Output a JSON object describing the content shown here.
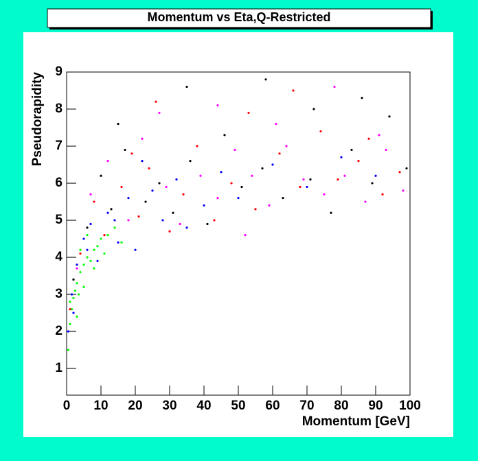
{
  "chart_data": {
    "type": "scatter",
    "title": "Momentum vs Eta,Q-Restricted",
    "x_label": "Momentum [GeV]",
    "y_label": "Pseudorapidity",
    "xlim": [
      0,
      100
    ],
    "ylim": [
      0.28,
      9
    ],
    "xticks": [
      0,
      10,
      20,
      30,
      40,
      50,
      60,
      70,
      80,
      90,
      100
    ],
    "yticks": [
      1,
      2,
      3,
      4,
      5,
      6,
      7,
      8,
      9
    ],
    "series": [
      {
        "color": "#00ff00",
        "x": [
          0.5,
          1,
          1.5,
          2,
          2.5,
          3,
          3.5,
          4,
          5,
          6,
          7,
          8,
          9,
          10,
          12,
          1,
          2,
          3,
          4,
          5,
          6,
          8,
          11,
          14,
          16
        ],
        "y": [
          1.5,
          2.2,
          2.6,
          2.9,
          3.1,
          3.3,
          3.0,
          3.6,
          3.8,
          4.0,
          3.9,
          4.2,
          4.3,
          4.5,
          4.6,
          2.8,
          3.4,
          2.4,
          4.2,
          3.2,
          4.6,
          3.7,
          4.1,
          4.8,
          4.4
        ]
      },
      {
        "color": "#0000ff",
        "x": [
          0.5,
          1.5,
          3,
          5,
          7,
          9,
          12,
          15,
          18,
          20,
          25,
          28,
          32,
          35,
          40,
          45,
          50,
          60,
          70,
          80,
          90,
          2,
          6,
          14,
          22
        ],
        "y": [
          2.0,
          3.0,
          3.8,
          4.5,
          4.9,
          3.9,
          5.2,
          4.4,
          5.6,
          4.2,
          5.8,
          5.0,
          6.1,
          4.8,
          5.4,
          6.3,
          5.6,
          6.5,
          5.9,
          6.7,
          6.2,
          2.5,
          4.2,
          5.0,
          6.6
        ]
      },
      {
        "color": "#ff0000",
        "x": [
          1,
          4,
          8,
          11,
          16,
          21,
          24,
          30,
          34,
          38,
          43,
          48,
          55,
          62,
          68,
          74,
          79,
          85,
          92,
          97,
          26,
          53,
          66,
          88,
          19
        ],
        "y": [
          2.6,
          4.1,
          5.5,
          4.6,
          5.9,
          5.1,
          6.4,
          4.7,
          5.7,
          7.0,
          5.0,
          6.0,
          5.3,
          6.8,
          5.9,
          7.4,
          6.1,
          6.6,
          5.7,
          6.3,
          8.2,
          7.9,
          8.5,
          7.2,
          6.8
        ]
      },
      {
        "color": "#000000",
        "x": [
          2,
          6,
          10,
          13,
          17,
          23,
          27,
          31,
          36,
          41,
          46,
          51,
          57,
          63,
          71,
          77,
          83,
          89,
          94,
          99,
          35,
          58,
          72,
          86,
          15
        ],
        "y": [
          3.4,
          4.8,
          6.2,
          5.3,
          6.9,
          5.5,
          6.0,
          5.2,
          6.6,
          4.9,
          7.3,
          5.9,
          6.4,
          5.6,
          6.1,
          5.2,
          6.9,
          6.0,
          7.8,
          6.4,
          8.6,
          8.8,
          8.0,
          8.3,
          7.6
        ]
      },
      {
        "color": "#ff00ff",
        "x": [
          3,
          7,
          12,
          18,
          22,
          29,
          33,
          39,
          44,
          49,
          54,
          59,
          64,
          69,
          75,
          81,
          87,
          93,
          98,
          44,
          61,
          78,
          91,
          27,
          52
        ],
        "y": [
          3.7,
          5.7,
          6.6,
          5.0,
          7.2,
          5.9,
          4.9,
          6.2,
          5.6,
          6.9,
          6.2,
          5.4,
          7.0,
          6.1,
          5.7,
          6.2,
          5.5,
          6.9,
          5.8,
          8.1,
          7.6,
          8.6,
          7.3,
          7.9,
          4.6
        ]
      }
    ]
  }
}
